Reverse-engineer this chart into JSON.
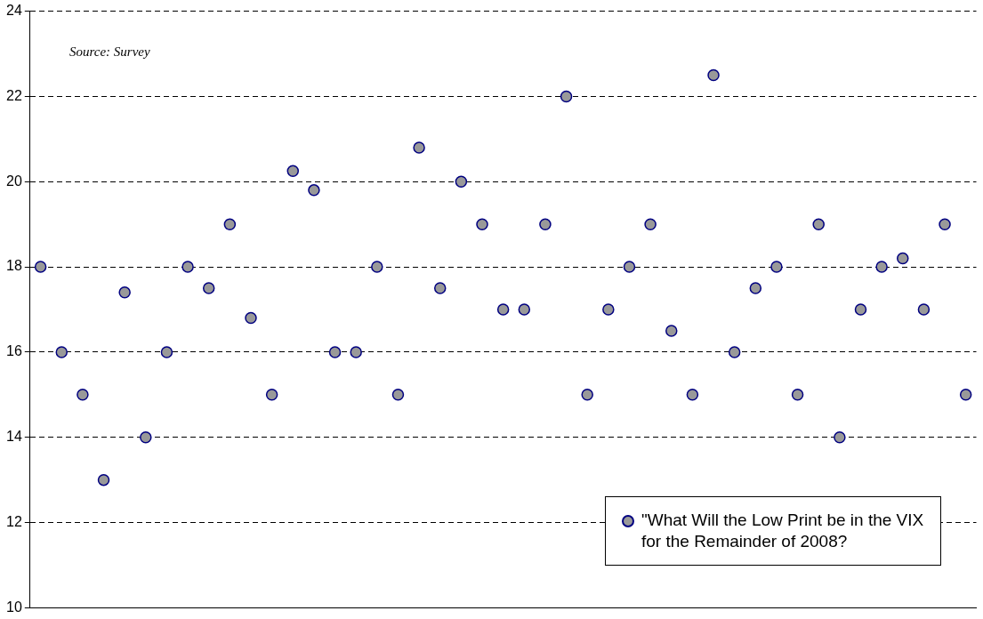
{
  "chart_data": {
    "type": "scatter",
    "categories": [
      null,
      null,
      null,
      null,
      null,
      null,
      null,
      null,
      null,
      null,
      null,
      null,
      null,
      null,
      null,
      null,
      null,
      null,
      null,
      null,
      null,
      null,
      null,
      null,
      null,
      null,
      null,
      null,
      null,
      null,
      null,
      null,
      null,
      null,
      null,
      null,
      null,
      null,
      null,
      null,
      null,
      null,
      null,
      null,
      null
    ],
    "series": [
      {
        "name": "\"What Will the Low Print be in the VIX for the Remainder of 2008?",
        "color": "#999999",
        "values": [
          18,
          16,
          15,
          13,
          17.4,
          14,
          16,
          18,
          17.5,
          19,
          16.8,
          15,
          20.25,
          19.8,
          16,
          16,
          18,
          15,
          20.8,
          17.5,
          20,
          19,
          17,
          17,
          19,
          22,
          15,
          17,
          18,
          19,
          16.5,
          15,
          22.5,
          16,
          17.5,
          18,
          15,
          19,
          14,
          17,
          18,
          18.2,
          17,
          19,
          15
        ]
      }
    ],
    "ylim": [
      10,
      24
    ],
    "yticks": [
      10,
      12,
      14,
      16,
      18,
      20,
      22,
      24
    ],
    "grid": "y",
    "legend": "bottom right",
    "marker": "circle",
    "tick_labels": "y",
    "annotations": [
      "Source: Survey"
    ]
  }
}
